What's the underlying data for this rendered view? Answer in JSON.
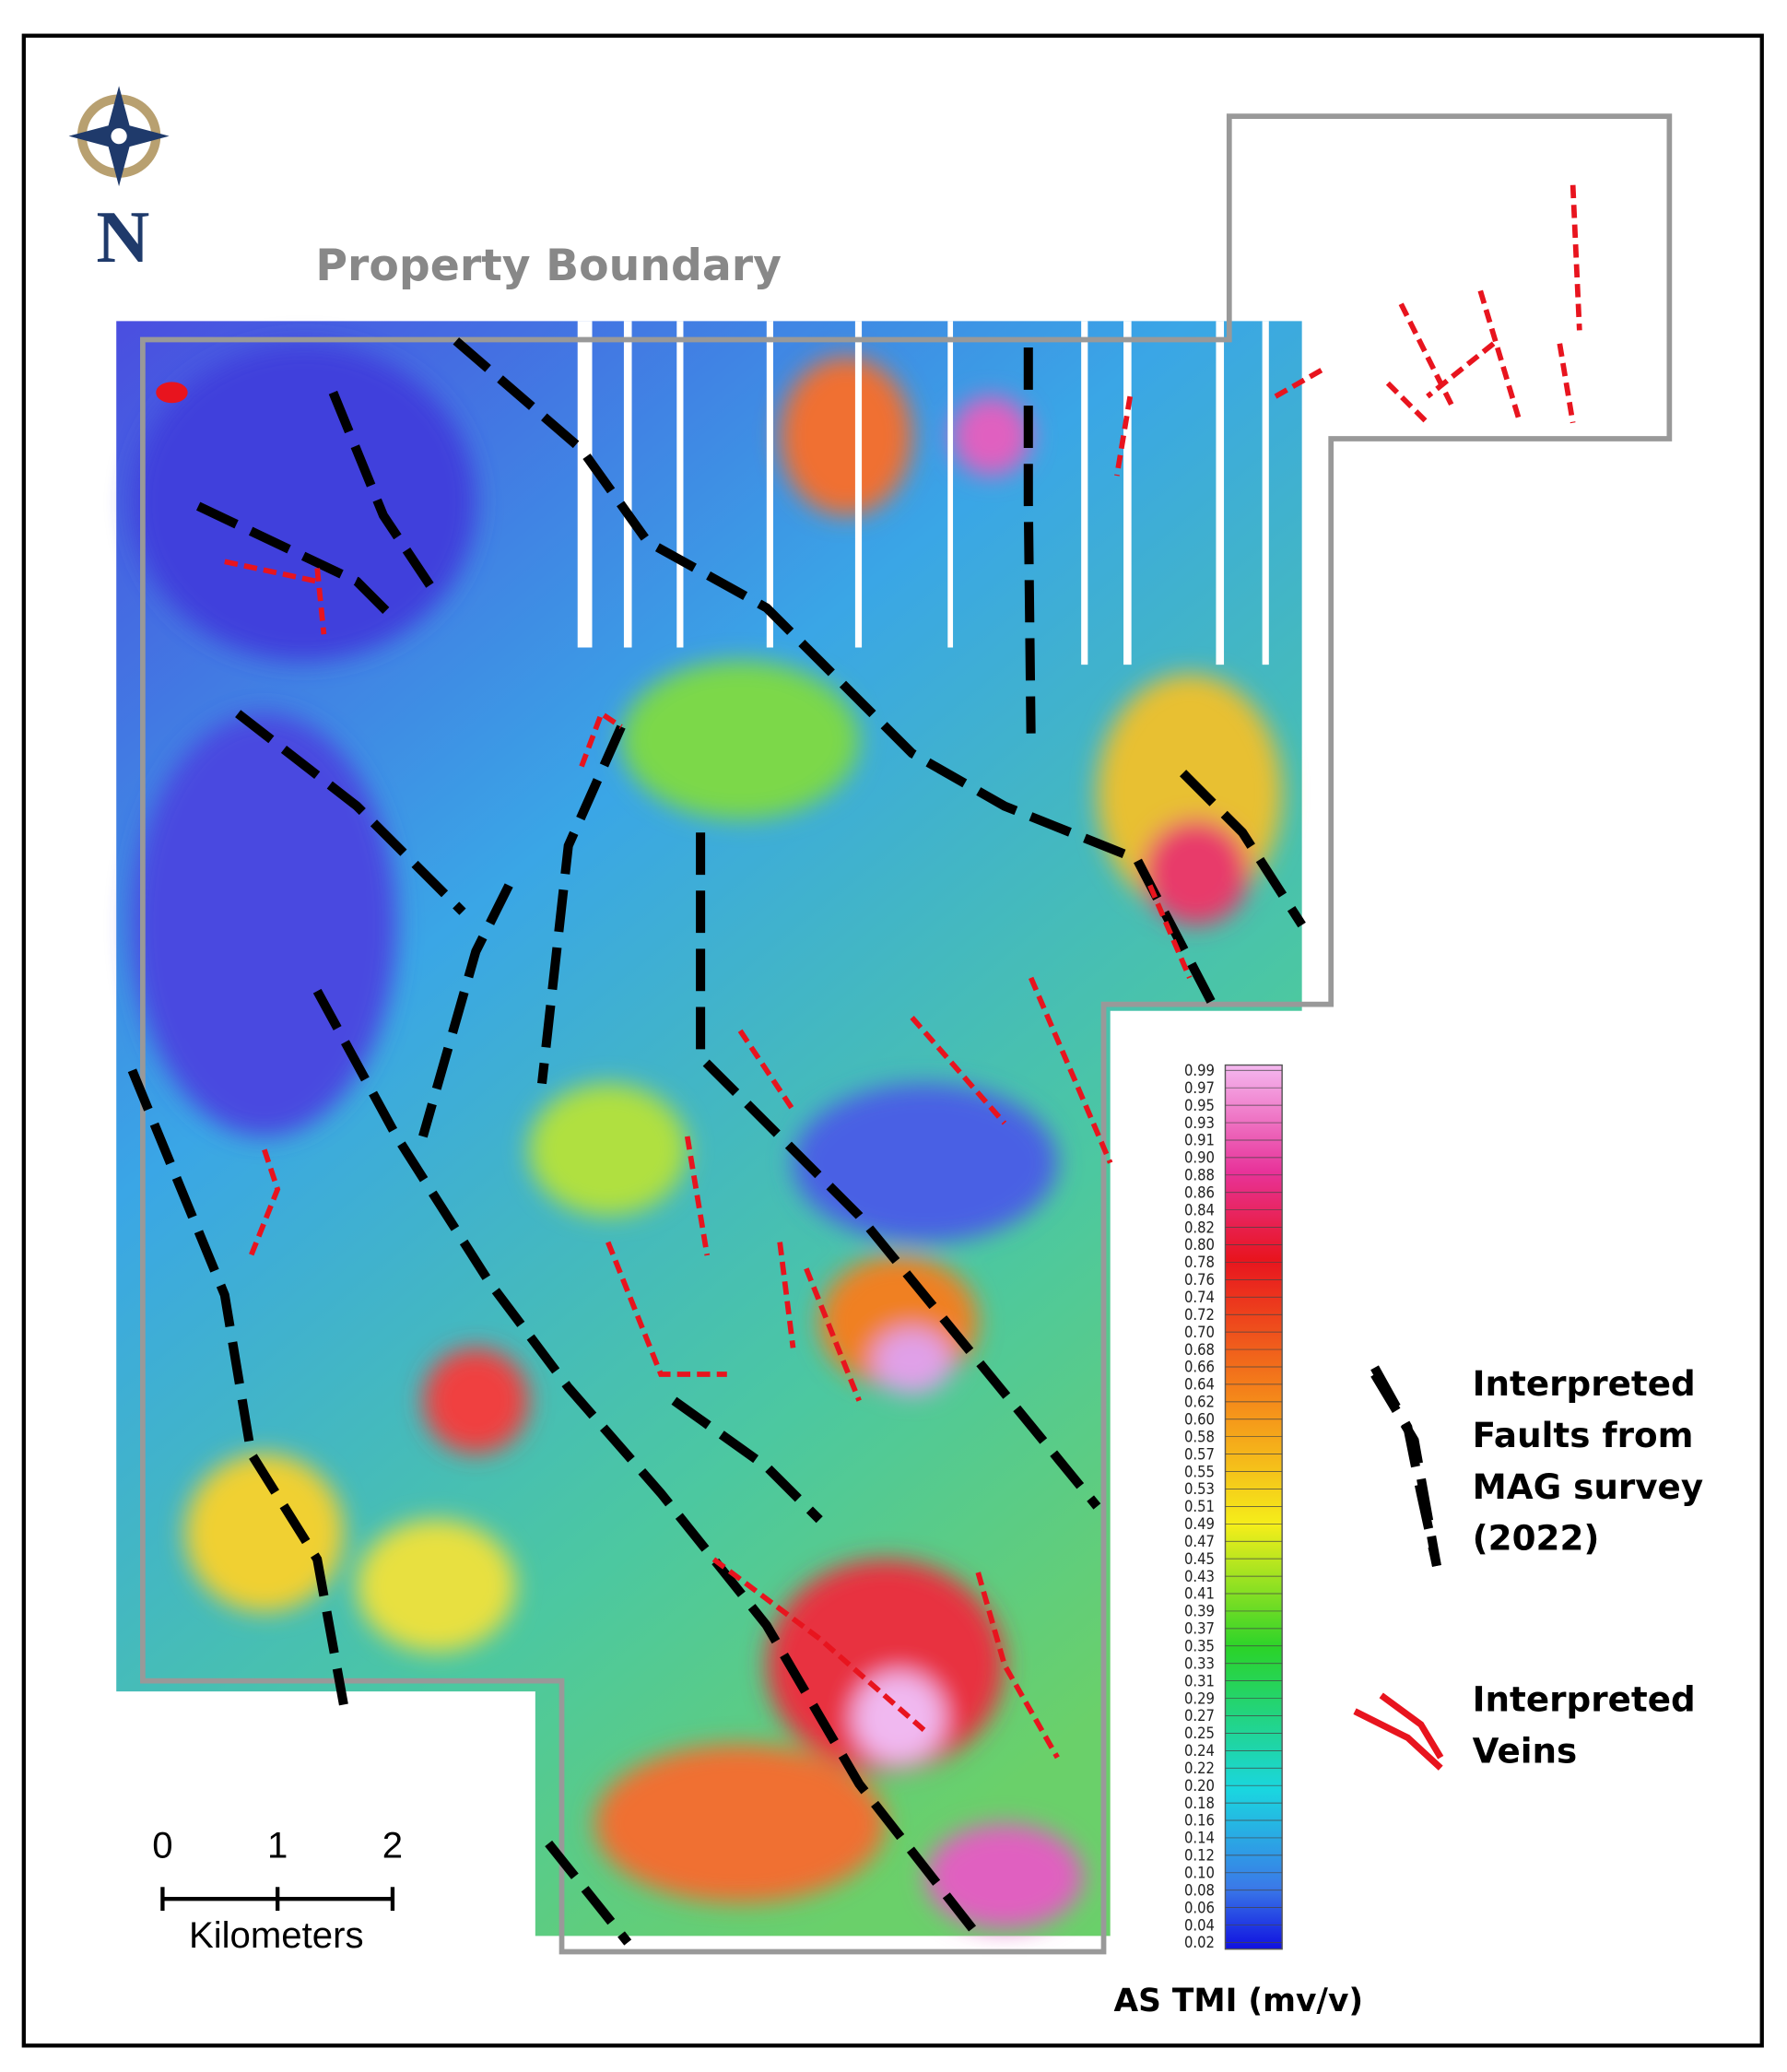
{
  "map": {
    "title": "Property Boundary",
    "north": "N",
    "scale_bar": {
      "ticks": [
        "0",
        "1",
        "2"
      ],
      "unit": "Kilometers"
    },
    "colorbar": {
      "title": "AS TMI (mv/v)",
      "labels": [
        "0.99",
        "0.97",
        "0.95",
        "0.93",
        "0.91",
        "0.90",
        "0.88",
        "0.86",
        "0.84",
        "0.82",
        "0.80",
        "0.78",
        "0.76",
        "0.74",
        "0.72",
        "0.70",
        "0.68",
        "0.66",
        "0.64",
        "0.62",
        "0.60",
        "0.58",
        "0.57",
        "0.55",
        "0.53",
        "0.51",
        "0.49",
        "0.47",
        "0.45",
        "0.43",
        "0.41",
        "0.39",
        "0.37",
        "0.35",
        "0.33",
        "0.31",
        "0.29",
        "0.27",
        "0.25",
        "0.24",
        "0.22",
        "0.20",
        "0.18",
        "0.16",
        "0.14",
        "0.12",
        "0.10",
        "0.08",
        "0.06",
        "0.04",
        "0.02"
      ]
    },
    "legend": [
      {
        "lines": [
          "Interpreted",
          "Faults from",
          "MAG survey",
          "(2022)"
        ]
      },
      {
        "lines": [
          "Interpreted",
          "Veins"
        ]
      }
    ]
  }
}
